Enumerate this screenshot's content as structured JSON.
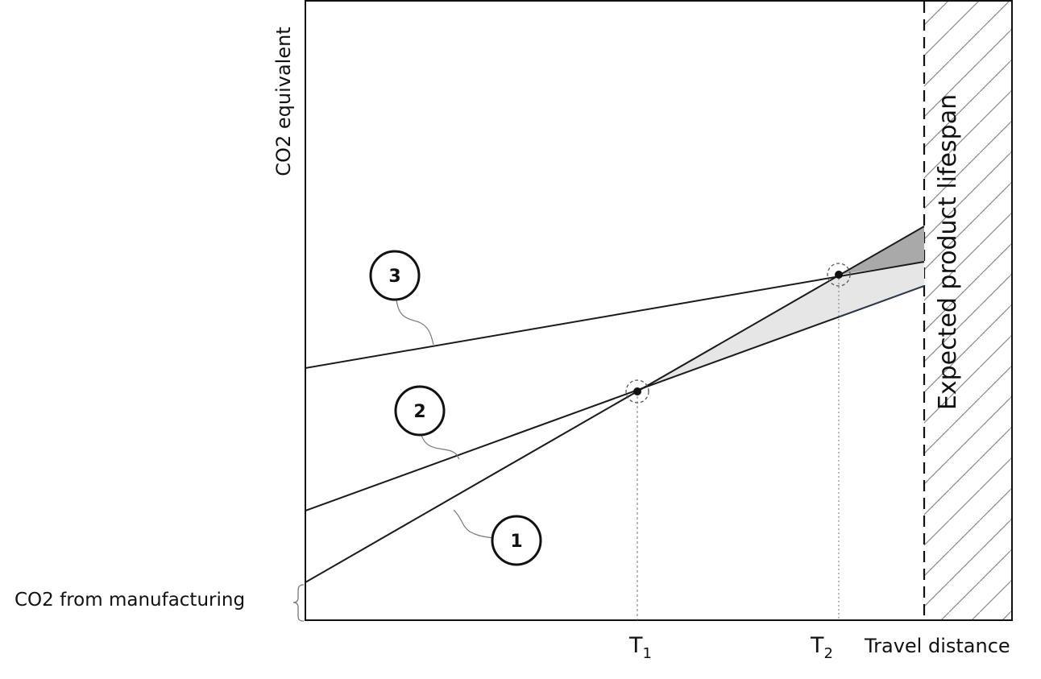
{
  "diagram": {
    "y_axis_label": "CO2 equivalent",
    "x_axis_label": "Travel distance",
    "lifespan_label": "Expected product lifespan",
    "manufacturing_label": "CO2 from manufacturing",
    "ticks": [
      {
        "id": "t1",
        "base": "T",
        "sub": "1"
      },
      {
        "id": "t2",
        "base": "T",
        "sub": "2"
      }
    ],
    "lines": [
      {
        "id": "1",
        "label": "1"
      },
      {
        "id": "2",
        "label": "2"
      },
      {
        "id": "3",
        "label": "3"
      }
    ],
    "colors": {
      "axis": "#111111",
      "line": "#1a1a1a",
      "shade_light": "#e6e6e6",
      "shade_dark": "#a9a9a9",
      "hatch": "#888888",
      "guide": "#777777"
    }
  }
}
